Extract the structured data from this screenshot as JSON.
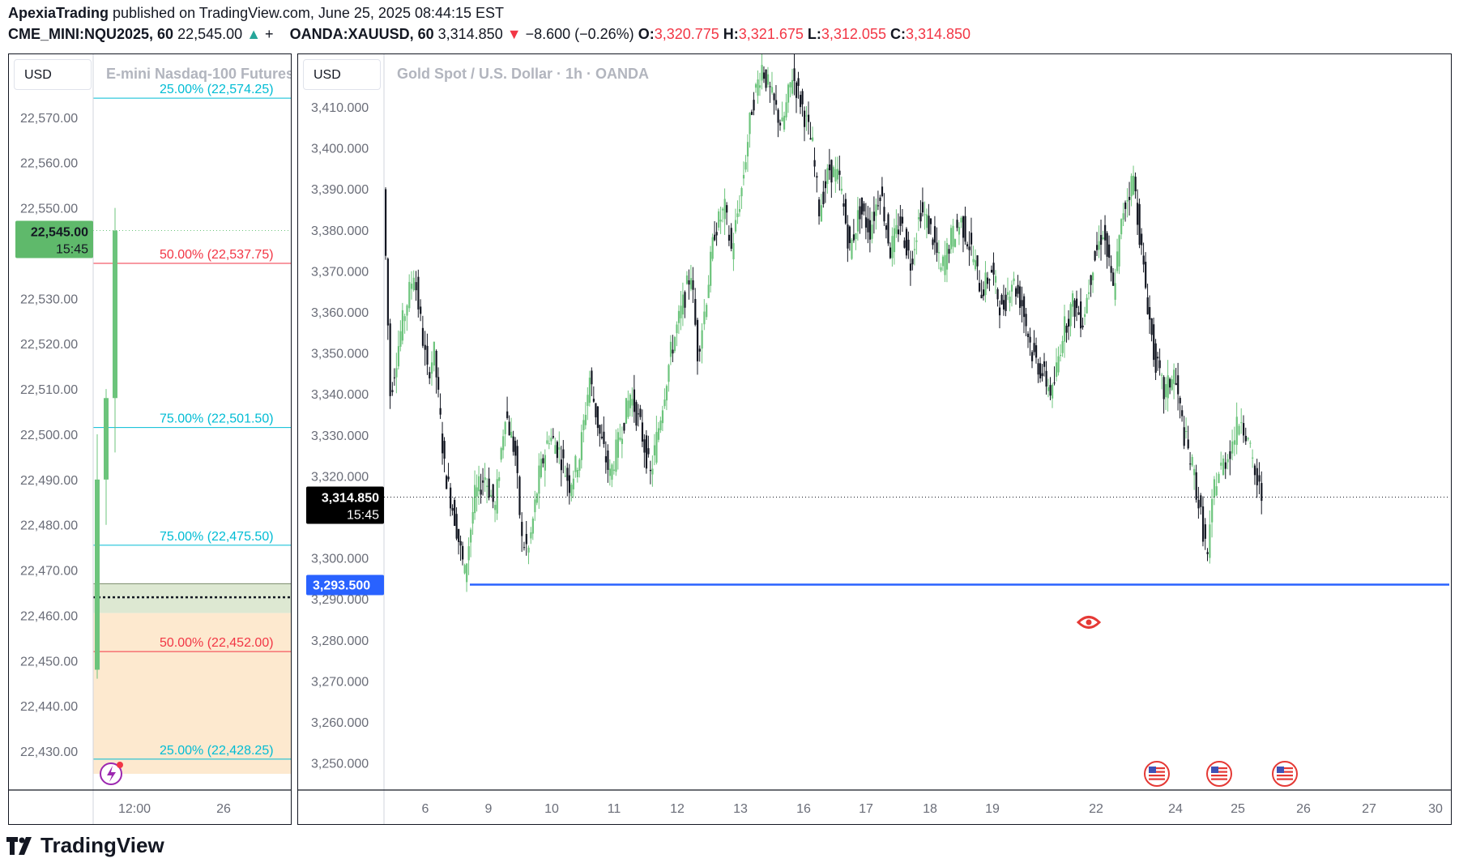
{
  "header": {
    "author": "ApexiaTrading",
    "published": " published on TradingView.com, June 25, 2025 08:44:15 EST",
    "left_symbol": "CME_MINI:NQU2025, 60",
    "left_price": "22,545.00",
    "left_change_partial": "+",
    "right_symbol": "OANDA:XAUUSD, 60",
    "right_price": "3,314.850",
    "right_change": "−8.600 (−0.26%)",
    "o_label": "O:",
    "o_value": "3,320.775",
    "h_label": "H:",
    "h_value": "3,321.675",
    "l_label": "L:",
    "l_value": "3,312.055",
    "c_label": "C:",
    "c_value": "3,314.850"
  },
  "left_pane": {
    "currency": "USD",
    "title": "E-mini Nasdaq-100 Futures",
    "price_tag": "22,545.00",
    "price_tag_time": "15:45"
  },
  "right_pane": {
    "currency": "USD",
    "title": "Gold Spot / U.S. Dollar · 1h · OANDA",
    "price_tag": "3,314.850",
    "price_tag_time": "15:45",
    "level_tag": "3,293.500"
  },
  "brand": {
    "logo_text": "TradingView"
  },
  "colors": {
    "up": "#6cc47c",
    "down": "#131722",
    "accent_blue": "#2962ff",
    "fib_teal": "#00bcd4",
    "fib_red": "#f23645",
    "zone_orange": "#fde9cf",
    "zone_green": "#dde8d2"
  },
  "chart_data": [
    {
      "type": "candlestick",
      "symbol": "CME_MINI:NQU2025",
      "title": "E-mini Nasdaq-100 Futures",
      "ylim": [
        22425,
        22580
      ],
      "y_ticks": [
        "22,570.00",
        "22,560.00",
        "22,550.00",
        "22,530.00",
        "22,520.00",
        "22,510.00",
        "22,500.00",
        "22,490.00",
        "22,480.00",
        "22,470.00",
        "22,460.00",
        "22,450.00",
        "22,440.00",
        "22,430.00"
      ],
      "x_ticks": [
        "12:00",
        "26"
      ],
      "last_price": 22545.0,
      "candles": [
        {
          "o": 22448,
          "h": 22500,
          "l": 22446,
          "c": 22490
        },
        {
          "o": 22490,
          "h": 22510,
          "l": 22480,
          "c": 22508
        },
        {
          "o": 22508,
          "h": 22550,
          "l": 22496,
          "c": 22545
        }
      ],
      "fib_levels": [
        {
          "label": "25.00% (22,574.25)",
          "price": 22574.25,
          "color": "teal"
        },
        {
          "label": "50.00% (22,537.75)",
          "price": 22537.75,
          "color": "red"
        },
        {
          "label": "75.00% (22,501.50)",
          "price": 22501.5,
          "color": "teal"
        },
        {
          "label": "75.00% (22,475.50)",
          "price": 22475.5,
          "color": "teal"
        },
        {
          "label": "50.00% (22,452.00)",
          "price": 22452.0,
          "color": "red"
        },
        {
          "label": "25.00% (22,428.25)",
          "price": 22428.25,
          "color": "teal"
        }
      ],
      "zones": [
        {
          "kind": "green",
          "from": 22460.5,
          "to": 22467.0
        },
        {
          "kind": "orange",
          "from": 22425,
          "to": 22460.5
        }
      ],
      "dotted_level": 22464.0
    },
    {
      "type": "candlestick",
      "symbol": "OANDA:XAUUSD",
      "title": "Gold Spot / U.S. Dollar · 1h · OANDA",
      "ylim": [
        3245,
        3418
      ],
      "y_ticks": [
        "3,410.000",
        "3,400.000",
        "3,390.000",
        "3,380.000",
        "3,370.000",
        "3,360.000",
        "3,350.000",
        "3,340.000",
        "3,330.000",
        "3,320.000",
        "3,300.000",
        "3,290.000",
        "3,280.000",
        "3,270.000",
        "3,260.000",
        "3,250.000"
      ],
      "x_ticks": [
        "6",
        "9",
        "10",
        "11",
        "12",
        "13",
        "16",
        "17",
        "18",
        "19",
        "22",
        "24",
        "25",
        "26",
        "27",
        "30"
      ],
      "last_price": 3314.85,
      "horizontal_level": 3293.5,
      "path": [
        [
          0,
          3390
        ],
        [
          4,
          3340
        ],
        [
          10,
          3355
        ],
        [
          18,
          3370
        ],
        [
          26,
          3345
        ],
        [
          30,
          3350
        ],
        [
          36,
          3322
        ],
        [
          42,
          3310
        ],
        [
          48,
          3296
        ],
        [
          54,
          3315
        ],
        [
          60,
          3320
        ],
        [
          66,
          3312
        ],
        [
          72,
          3336
        ],
        [
          78,
          3325
        ],
        [
          82,
          3304
        ],
        [
          86,
          3302
        ],
        [
          92,
          3320
        ],
        [
          98,
          3330
        ],
        [
          104,
          3326
        ],
        [
          110,
          3318
        ],
        [
          116,
          3325
        ],
        [
          122,
          3344
        ],
        [
          128,
          3330
        ],
        [
          134,
          3320
        ],
        [
          140,
          3330
        ],
        [
          146,
          3340
        ],
        [
          152,
          3332
        ],
        [
          158,
          3320
        ],
        [
          164,
          3335
        ],
        [
          170,
          3350
        ],
        [
          176,
          3360
        ],
        [
          182,
          3370
        ],
        [
          186,
          3350
        ],
        [
          190,
          3360
        ],
        [
          196,
          3380
        ],
        [
          202,
          3385
        ],
        [
          206,
          3375
        ],
        [
          212,
          3390
        ],
        [
          218,
          3410
        ],
        [
          224,
          3420
        ],
        [
          230,
          3412
        ],
        [
          236,
          3405
        ],
        [
          242,
          3418
        ],
        [
          248,
          3410
        ],
        [
          254,
          3400
        ],
        [
          258,
          3385
        ],
        [
          264,
          3395
        ],
        [
          270,
          3392
        ],
        [
          276,
          3375
        ],
        [
          282,
          3385
        ],
        [
          288,
          3380
        ],
        [
          294,
          3390
        ],
        [
          300,
          3375
        ],
        [
          306,
          3382
        ],
        [
          312,
          3372
        ],
        [
          318,
          3385
        ],
        [
          324,
          3380
        ],
        [
          330,
          3370
        ],
        [
          336,
          3378
        ],
        [
          342,
          3382
        ],
        [
          348,
          3375
        ],
        [
          354,
          3365
        ],
        [
          360,
          3370
        ],
        [
          366,
          3360
        ],
        [
          372,
          3368
        ],
        [
          378,
          3362
        ],
        [
          384,
          3350
        ],
        [
          390,
          3345
        ],
        [
          396,
          3340
        ],
        [
          402,
          3355
        ],
        [
          408,
          3362
        ],
        [
          414,
          3358
        ],
        [
          420,
          3372
        ],
        [
          426,
          3380
        ],
        [
          432,
          3365
        ],
        [
          438,
          3385
        ],
        [
          444,
          3393
        ],
        [
          450,
          3370
        ],
        [
          456,
          3350
        ],
        [
          462,
          3340
        ],
        [
          468,
          3345
        ],
        [
          474,
          3330
        ],
        [
          480,
          3320
        ],
        [
          484,
          3310
        ],
        [
          488,
          3300
        ],
        [
          492,
          3318
        ],
        [
          496,
          3322
        ],
        [
          500,
          3325
        ],
        [
          504,
          3330
        ],
        [
          508,
          3335
        ],
        [
          512,
          3328
        ],
        [
          516,
          3320
        ],
        [
          520,
          3315
        ]
      ]
    }
  ]
}
